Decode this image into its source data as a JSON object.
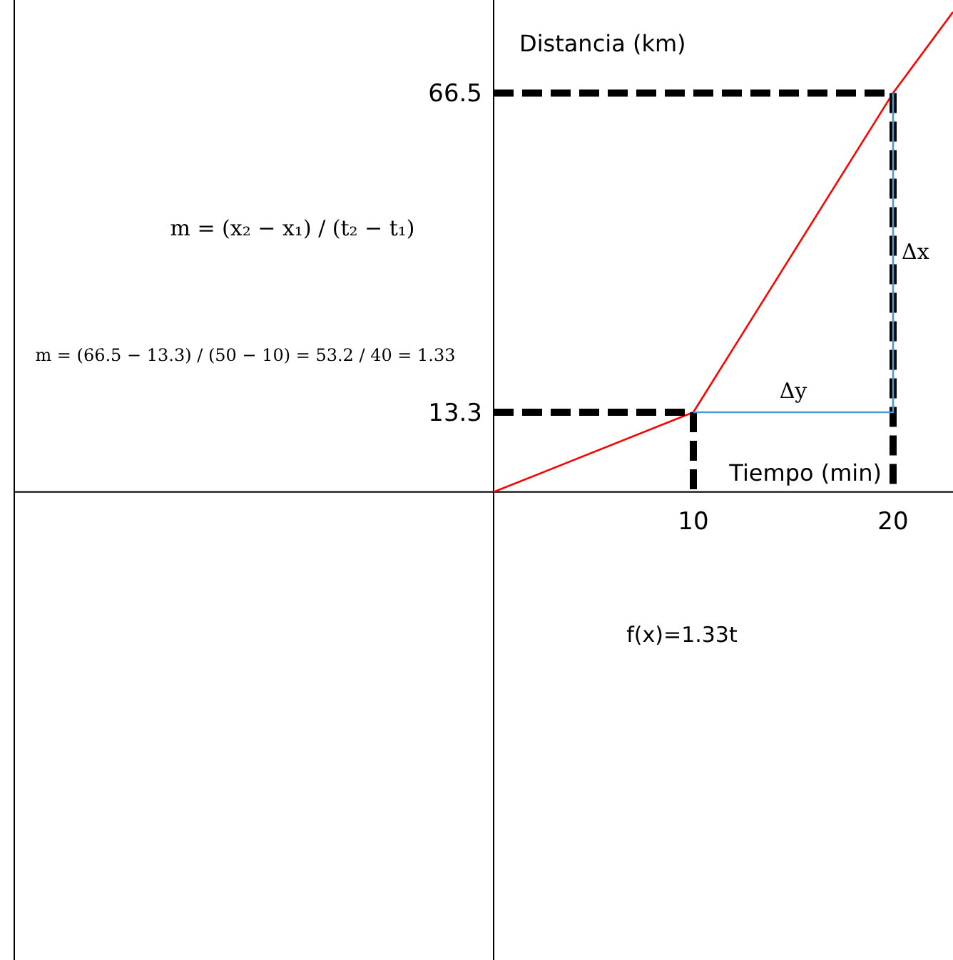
{
  "chart_data": {
    "type": "line",
    "xlabel": "Tiempo (min)",
    "ylabel": "Distancia (km)",
    "xlim": [
      -24,
      23
    ],
    "ylim": [
      -78,
      82
    ],
    "xticks": [
      10,
      20
    ],
    "yticks": [
      13.3,
      66.5
    ],
    "series": [
      {
        "color": "#ff0000",
        "x": [
          0,
          10,
          20,
          23
        ],
        "values": [
          0,
          13.3,
          66.5,
          80
        ],
        "line_style": "solid"
      },
      {
        "color": "#000000",
        "x": [
          0,
          10,
          10
        ],
        "values": [
          13.3,
          13.3,
          0
        ],
        "line_style": "dashed"
      },
      {
        "color": "#000000",
        "x": [
          0,
          20,
          20
        ],
        "values": [
          66.5,
          66.5,
          0
        ],
        "line_style": "dashed"
      },
      {
        "color": "#4a9ad4",
        "x": [
          10,
          20,
          20
        ],
        "values": [
          13.3,
          13.3,
          66.5
        ],
        "line_style": "solid"
      }
    ],
    "annotations": [
      "m = (x₂ − x₁) / (t₂ − t₁)",
      "m = (66.5 − 13.3) / (50 − 10) = 53.2 / 40 = 1.33",
      "f(x)=1.33t",
      {
        "text": "Δy",
        "x": 15,
        "y": 13.3
      },
      {
        "text": "Δx",
        "x": 20,
        "y": 40
      }
    ]
  }
}
